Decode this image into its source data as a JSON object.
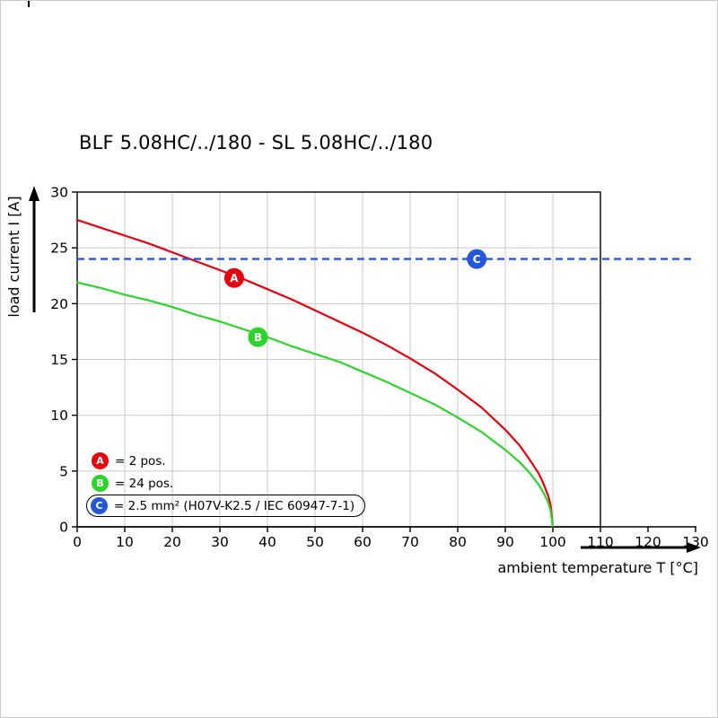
{
  "title": "BLF 5.08HC/../180 - SL 5.08HC/../180",
  "chart_data": {
    "type": "line",
    "title": "BLF 5.08HC/../180 - SL 5.08HC/../180",
    "xlabel": "ambient temperature T [°C]",
    "ylabel": "load current I [A]",
    "xlim": [
      0,
      130
    ],
    "ylim": [
      0,
      30
    ],
    "x_ticks": [
      0,
      10,
      20,
      30,
      40,
      50,
      60,
      70,
      80,
      90,
      100,
      110,
      120,
      130
    ],
    "y_ticks": [
      0,
      5,
      10,
      15,
      20,
      25,
      30
    ],
    "grid": true,
    "grid_box_x_end": 110,
    "series": [
      {
        "name": "A",
        "legend": "= 2 pos.",
        "type": "curve",
        "color": "#e8000d",
        "points": [
          [
            0,
            27.5
          ],
          [
            5,
            26.8
          ],
          [
            10,
            26.1
          ],
          [
            15,
            25.4
          ],
          [
            20,
            24.6
          ],
          [
            25,
            23.8
          ],
          [
            30,
            23.0
          ],
          [
            35,
            22.2
          ],
          [
            40,
            21.3
          ],
          [
            45,
            20.4
          ],
          [
            50,
            19.4
          ],
          [
            55,
            18.4
          ],
          [
            60,
            17.4
          ],
          [
            65,
            16.3
          ],
          [
            70,
            15.1
          ],
          [
            75,
            13.8
          ],
          [
            80,
            12.3
          ],
          [
            85,
            10.7
          ],
          [
            90,
            8.7
          ],
          [
            93,
            7.3
          ],
          [
            95,
            6.1
          ],
          [
            97,
            4.8
          ],
          [
            98,
            3.9
          ],
          [
            99,
            2.8
          ],
          [
            99.5,
            2.0
          ],
          [
            100,
            0
          ]
        ]
      },
      {
        "name": "B",
        "legend": "= 24 pos.",
        "type": "curve",
        "color": "#2bd52b",
        "points": [
          [
            0,
            21.9
          ],
          [
            5,
            21.4
          ],
          [
            10,
            20.8
          ],
          [
            15,
            20.3
          ],
          [
            20,
            19.7
          ],
          [
            25,
            19.0
          ],
          [
            30,
            18.4
          ],
          [
            35,
            17.7
          ],
          [
            40,
            17.0
          ],
          [
            45,
            16.2
          ],
          [
            50,
            15.5
          ],
          [
            55,
            14.8
          ],
          [
            60,
            13.9
          ],
          [
            65,
            13.0
          ],
          [
            70,
            12.0
          ],
          [
            75,
            11.0
          ],
          [
            80,
            9.8
          ],
          [
            85,
            8.5
          ],
          [
            90,
            6.9
          ],
          [
            93,
            5.8
          ],
          [
            95,
            4.9
          ],
          [
            97,
            3.8
          ],
          [
            98,
            3.1
          ],
          [
            99,
            2.2
          ],
          [
            99.5,
            1.5
          ],
          [
            100,
            0
          ]
        ]
      },
      {
        "name": "C",
        "legend": "= 2.5 mm² (H07V-K2.5 / IEC 60947-7-1)",
        "type": "hline",
        "value": 24,
        "dashed": true,
        "color": "#2457db"
      }
    ],
    "markers": [
      {
        "letter": "A",
        "t": 33,
        "i": 22.3,
        "color": "#e8000d"
      },
      {
        "letter": "B",
        "t": 38,
        "i": 17.0,
        "color": "#2bd52b"
      },
      {
        "letter": "C",
        "t": 84,
        "i": 24.0,
        "color": "#2457db"
      }
    ]
  },
  "legend": {
    "items": [
      {
        "letter": "A",
        "color": "#e8000d",
        "label": "= 2 pos.",
        "boxed": false
      },
      {
        "letter": "B",
        "color": "#2bd52b",
        "label": "= 24 pos.",
        "boxed": false
      },
      {
        "letter": "C",
        "color": "#2457db",
        "label": "= 2.5 mm² (H07V-K2.5 / IEC 60947-7-1)",
        "boxed": true
      }
    ]
  }
}
